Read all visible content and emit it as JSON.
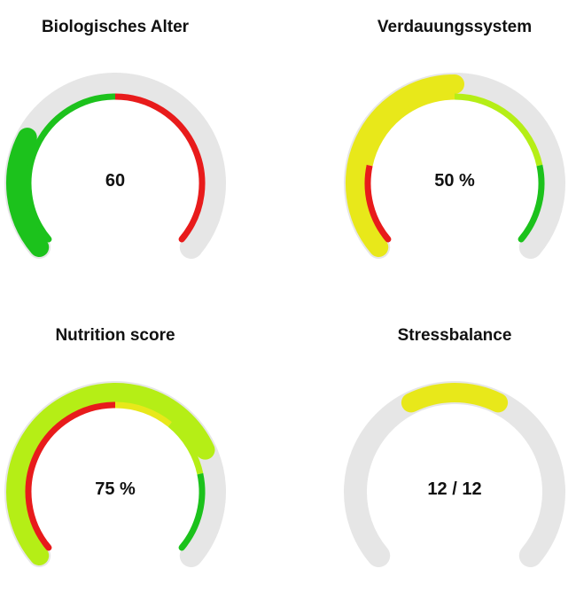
{
  "colors": {
    "track": "#e6e6e6",
    "green": "#1cc21c",
    "red": "#e81b1b",
    "yellow": "#e8e81a",
    "lime": "#b5ee16"
  },
  "chart_data": [
    {
      "type": "gauge",
      "title": "Biologisches Alter",
      "value_label": "60",
      "value_fraction": 0.26,
      "indicator_color": "green",
      "bands": [
        {
          "from": 0,
          "to": 0.5,
          "color": "green"
        },
        {
          "from": 0.5,
          "to": 1,
          "color": "red"
        }
      ]
    },
    {
      "type": "gauge",
      "title": "Verdauungssystem",
      "value_label": "50 %",
      "value_fraction": 0.5,
      "indicator_color": "yellow",
      "bands": [
        {
          "from": 0,
          "to": 0.2,
          "color": "red"
        },
        {
          "from": 0.2,
          "to": 0.5,
          "color": "yellow"
        },
        {
          "from": 0.5,
          "to": 0.8,
          "color": "lime"
        },
        {
          "from": 0.8,
          "to": 1,
          "color": "green"
        }
      ]
    },
    {
      "type": "gauge",
      "title": "Nutrition score",
      "value_label": "75 %",
      "value_fraction": 0.75,
      "indicator_color": "lime",
      "bands": [
        {
          "from": 0,
          "to": 0.5,
          "color": "red"
        },
        {
          "from": 0.5,
          "to": 0.65,
          "color": "yellow"
        },
        {
          "from": 0.65,
          "to": 0.8,
          "color": "lime"
        },
        {
          "from": 0.8,
          "to": 1,
          "color": "green"
        }
      ]
    },
    {
      "type": "gauge",
      "title": "Stressbalance",
      "value_label": "12 / 12",
      "value_fraction": 1,
      "indicator_color": "yellow",
      "indicator_segment": [
        0.4,
        0.6
      ],
      "bands": []
    }
  ]
}
